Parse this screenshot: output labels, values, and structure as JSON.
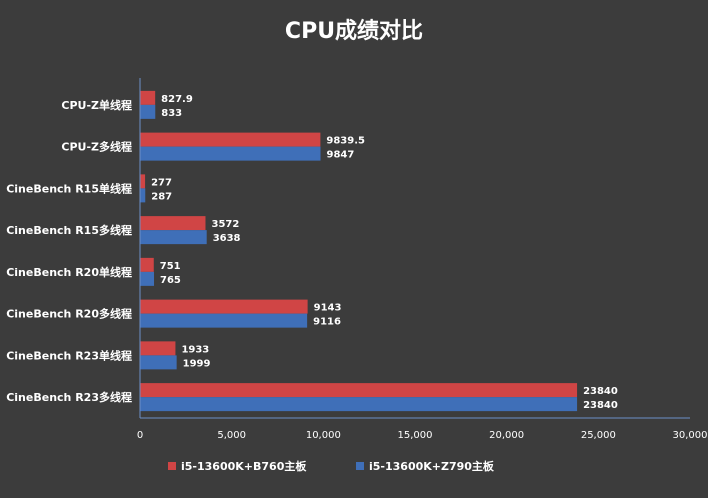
{
  "chart_data": {
    "type": "bar",
    "orientation": "horizontal",
    "title": "CPU成绩对比",
    "categories": [
      "CPU-Z单线程",
      "CPU-Z多线程",
      "CineBench R15单线程",
      "CineBench R15多线程",
      "CineBench R20单线程",
      "CineBench R20多线程",
      "CineBench R23单线程",
      "CineBench R23多线程"
    ],
    "series": [
      {
        "name": "i5-13600K+B760主板",
        "color": "#d04545",
        "values": [
          827.9,
          9839.5,
          277,
          3572,
          751,
          9143,
          1933,
          23840
        ],
        "labels": [
          "827.9",
          "9839.5",
          "277",
          "3572",
          "751",
          "9143",
          "1933",
          "23840"
        ]
      },
      {
        "name": "i5-13600K+Z790主板",
        "color": "#3f6fb8",
        "values": [
          833,
          9847,
          287,
          3638,
          765,
          9116,
          1999,
          23840
        ],
        "labels": [
          "833",
          "9847",
          "287",
          "3638",
          "765",
          "9116",
          "1999",
          "23840"
        ]
      }
    ],
    "xlim": [
      0,
      30000
    ],
    "xticks": [
      0,
      5000,
      10000,
      15000,
      20000,
      25000,
      30000
    ],
    "xtick_labels": [
      "0",
      "5,000",
      "10,000",
      "15,000",
      "20,000",
      "25,000",
      "30,000"
    ],
    "xlabel": "",
    "ylabel": "",
    "grid": false,
    "legend_position": "bottom",
    "background": "#3c3c3c",
    "text_color": "#ffffff",
    "axis_color": "#6d8fc7"
  }
}
